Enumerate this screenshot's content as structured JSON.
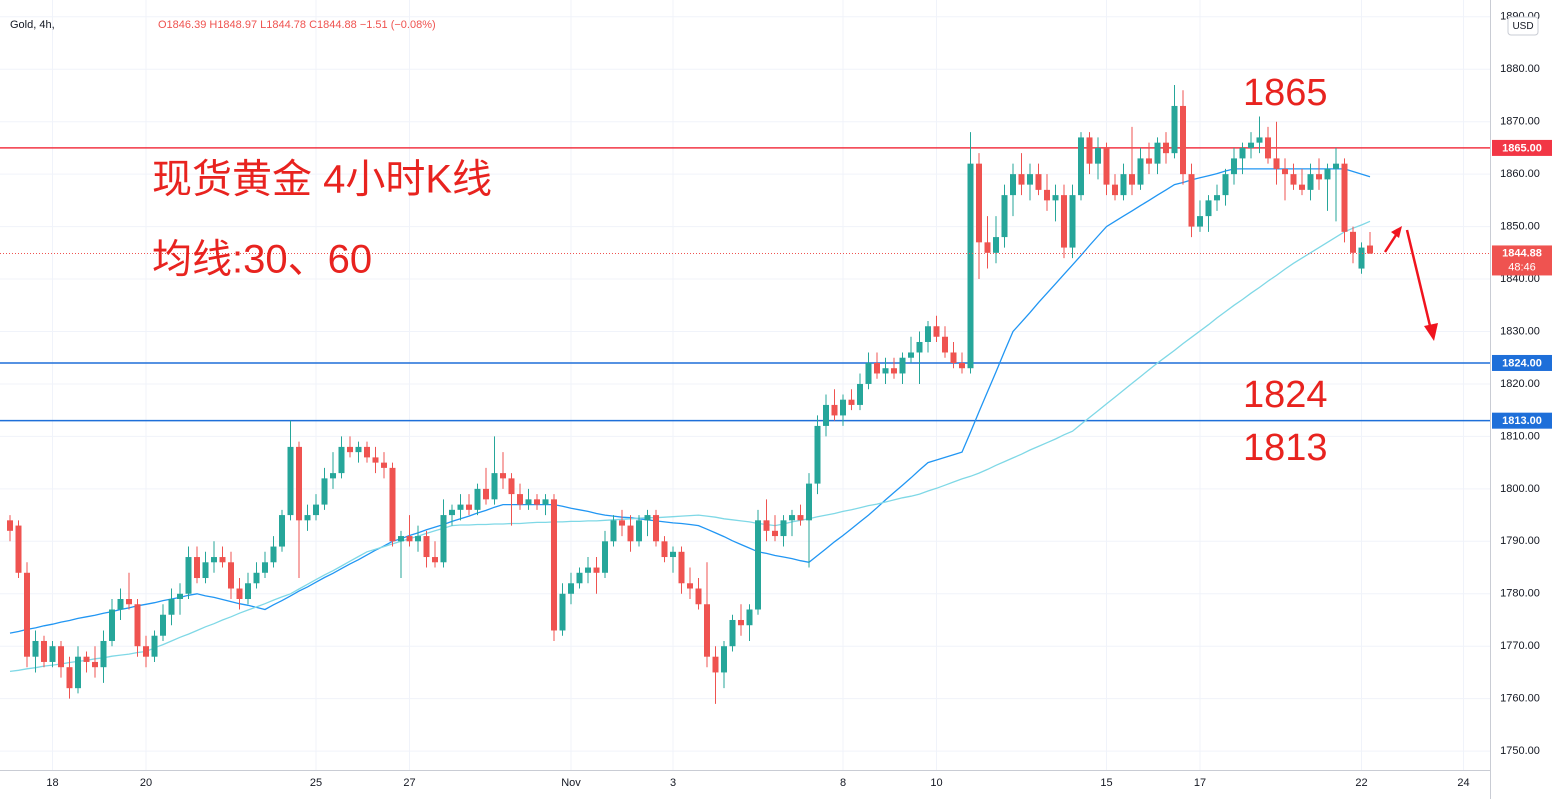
{
  "chart_data": {
    "type": "candlestick",
    "symbol": "Gold, 4h,",
    "ohlc_text": "O1846.39 H1848.97 L1844.78 C1844.88 −1.51 (−0.08%)",
    "currency": "USD",
    "annotations": [
      "现货黄金 4小时K线",
      "均线:30、60",
      "1865",
      "1824",
      "1813"
    ],
    "up_color": "#26a69a",
    "down_color": "#ef5350",
    "categories": [
      null,
      null,
      null,
      null,
      null,
      "18",
      null,
      null,
      null,
      null,
      null,
      null,
      null,
      null,
      null,
      null,
      "20",
      null,
      null,
      null,
      null,
      null,
      null,
      null,
      null,
      null,
      null,
      null,
      null,
      null,
      null,
      null,
      null,
      null,
      null,
      null,
      "25",
      null,
      null,
      null,
      null,
      null,
      null,
      null,
      null,
      null,
      null,
      "27",
      null,
      null,
      null,
      null,
      null,
      null,
      null,
      null,
      null,
      null,
      null,
      null,
      null,
      null,
      null,
      null,
      null,
      null,
      "Nov",
      null,
      null,
      null,
      null,
      null,
      null,
      null,
      null,
      null,
      null,
      null,
      "3",
      null,
      null,
      null,
      null,
      null,
      null,
      null,
      null,
      null,
      null,
      null,
      null,
      null,
      null,
      null,
      null,
      null,
      null,
      null,
      "8",
      null,
      null,
      null,
      null,
      null,
      null,
      null,
      null,
      null,
      null,
      "10",
      null,
      null,
      null,
      null,
      null,
      null,
      null,
      null,
      null,
      null,
      null,
      null,
      null,
      null,
      null,
      null,
      null,
      null,
      null,
      "15",
      null,
      null,
      null,
      null,
      null,
      null,
      null,
      null,
      null,
      null,
      "17",
      null,
      null,
      null,
      null,
      null,
      null,
      null,
      null,
      null,
      null,
      null,
      null,
      null,
      null,
      null,
      null,
      null,
      null,
      "22",
      null,
      null,
      null,
      null,
      null,
      null,
      null,
      null,
      null,
      null,
      null,
      "24",
      null,
      null,
      null
    ],
    "open": [
      1794,
      1793,
      1784,
      1768,
      1771,
      1767,
      1770,
      1766,
      1762,
      1768,
      1767,
      1766,
      1771,
      1777,
      1779,
      1778,
      1770,
      1768,
      1772,
      1776,
      1779,
      1780,
      1787,
      1783,
      1786,
      1787,
      1786,
      1781,
      1779,
      1782,
      1784,
      1786,
      1789,
      1795,
      1808,
      1794,
      1795,
      1797,
      1802,
      1803,
      1808,
      1807,
      1808,
      1806,
      1805,
      1804,
      1790,
      1791,
      1790,
      1791,
      1787,
      1786,
      1795,
      1796,
      1797,
      1796,
      1800,
      1798,
      1803,
      1802,
      1799,
      1797,
      1798,
      1797,
      1798,
      1773,
      1780,
      1782,
      1784,
      1785,
      1784,
      1790,
      1794,
      1793,
      1790,
      1794,
      1795,
      1790,
      1787,
      1788,
      1782,
      1781,
      1778,
      1768,
      1765,
      1770,
      1775,
      1774,
      1777,
      1794,
      1792,
      1791,
      1794,
      1795,
      1794,
      1801,
      1812,
      1816,
      1814,
      1817,
      1816,
      1820,
      1824,
      1822,
      1823,
      1822,
      1825,
      1826,
      1828,
      1831,
      1829,
      1826,
      1824,
      1823,
      1862,
      1847,
      1845,
      1848,
      1856,
      1860,
      1858,
      1860,
      1857,
      1855,
      1856,
      1846,
      1856,
      1867,
      1862,
      1865,
      1858,
      1856,
      1860,
      1858,
      1863,
      1862,
      1866,
      1864,
      1873,
      1860,
      1850,
      1852,
      1855,
      1856,
      1860,
      1863,
      1865,
      1866,
      1867,
      1863,
      1861,
      1860,
      1858,
      1857,
      1860,
      1859,
      1861,
      1862,
      1849,
      1842,
      1846.39,
      null,
      null,
      null,
      null,
      null,
      null,
      null,
      null,
      null,
      null,
      null,
      null,
      null,
      null
    ],
    "high": [
      1795,
      1794,
      1786,
      1773,
      1772,
      1771,
      1771,
      1768,
      1770,
      1769,
      1770,
      1773,
      1779,
      1781,
      1784,
      1779,
      1772,
      1773,
      1778,
      1781,
      1782,
      1789,
      1789,
      1788,
      1790,
      1789,
      1788,
      1783,
      1784,
      1786,
      1788,
      1791,
      1796,
      1813,
      1809,
      1797,
      1799,
      1804,
      1807,
      1810,
      1810,
      1809,
      1809,
      1808,
      1807,
      1805,
      1792,
      1795,
      1793,
      1792,
      1790,
      1798,
      1797,
      1799,
      1799,
      1801,
      1804,
      1810,
      1807,
      1803,
      1801,
      1800,
      1799,
      1799,
      1799,
      1782,
      1784,
      1785,
      1787,
      1787,
      1792,
      1795,
      1796,
      1795,
      1795,
      1796,
      1796,
      1791,
      1789,
      1789,
      1785,
      1783,
      1786,
      1770,
      1771,
      1776,
      1778,
      1778,
      1796,
      1798,
      1795,
      1795,
      1796,
      1797,
      1803,
      1814,
      1818,
      1819,
      1818,
      1819,
      1822,
      1826,
      1826,
      1825,
      1825,
      1826,
      1829,
      1830,
      1832,
      1833,
      1831,
      1828,
      1826,
      1868,
      1864,
      1852,
      1852,
      1858,
      1862,
      1864,
      1862,
      1862,
      1860,
      1858,
      1858,
      1858,
      1868,
      1868,
      1867,
      1866,
      1860,
      1862,
      1869,
      1865,
      1866,
      1867,
      1868,
      1877,
      1876,
      1862,
      1855,
      1856,
      1858,
      1861,
      1865,
      1866,
      1868,
      1871,
      1869,
      1870,
      1863,
      1862,
      1861,
      1862,
      1863,
      1862,
      1865,
      1863,
      1850,
      1847,
      1848.97,
      null,
      null,
      null,
      null,
      null,
      null,
      null,
      null,
      null,
      null,
      null,
      null,
      null,
      null
    ],
    "low": [
      1790,
      1783,
      1766,
      1765,
      1766,
      1766,
      1764,
      1760,
      1761,
      1765,
      1764,
      1763,
      1770,
      1775,
      1777,
      1768,
      1766,
      1767,
      1771,
      1774,
      1776,
      1779,
      1782,
      1782,
      1784,
      1785,
      1779,
      1777,
      1778,
      1781,
      1783,
      1785,
      1788,
      1794,
      1783,
      1792,
      1794,
      1796,
      1800,
      1802,
      1806,
      1805,
      1805,
      1803,
      1802,
      1789,
      1783,
      1789,
      1788,
      1785,
      1785,
      1785,
      1793,
      1794,
      1795,
      1795,
      1797,
      1797,
      1800,
      1793,
      1796,
      1796,
      1796,
      1795,
      1771,
      1772,
      1778,
      1781,
      1782,
      1780,
      1783,
      1789,
      1791,
      1788,
      1789,
      1791,
      1789,
      1786,
      1784,
      1780,
      1779,
      1777,
      1766,
      1759,
      1762,
      1769,
      1772,
      1771,
      1776,
      1790,
      1790,
      1789,
      1791,
      1793,
      1785,
      1799,
      1810,
      1813,
      1812,
      1815,
      1815,
      1819,
      1821,
      1820,
      1821,
      1820,
      1824,
      1820,
      1826,
      1828,
      1825,
      1823,
      1822,
      1822,
      1840,
      1842,
      1843,
      1846,
      1852,
      1856,
      1855,
      1856,
      1853,
      1851,
      1844,
      1844,
      1855,
      1860,
      1859,
      1856,
      1855,
      1855,
      1856,
      1857,
      1860,
      1860,
      1862,
      1863,
      1858,
      1848,
      1849,
      1849,
      1853,
      1854,
      1858,
      1860,
      1863,
      1864,
      1862,
      1858,
      1855,
      1857,
      1856,
      1855,
      1857,
      1853,
      1851,
      1847,
      1843,
      1841,
      1844.78,
      null,
      null,
      null,
      null,
      null,
      null,
      null,
      null,
      null,
      null,
      null,
      null,
      null,
      null
    ],
    "close": [
      1792,
      1784,
      1768,
      1771,
      1767,
      1770,
      1766,
      1762,
      1768,
      1767,
      1766,
      1771,
      1777,
      1779,
      1778,
      1770,
      1768,
      1772,
      1776,
      1779,
      1780,
      1787,
      1783,
      1786,
      1787,
      1786,
      1781,
      1779,
      1782,
      1784,
      1786,
      1789,
      1795,
      1808,
      1794,
      1795,
      1797,
      1802,
      1803,
      1808,
      1807,
      1808,
      1806,
      1805,
      1804,
      1790,
      1791,
      1790,
      1791,
      1787,
      1786,
      1795,
      1796,
      1797,
      1796,
      1800,
      1798,
      1803,
      1802,
      1799,
      1797,
      1798,
      1797,
      1798,
      1773,
      1780,
      1782,
      1784,
      1785,
      1784,
      1790,
      1794,
      1793,
      1790,
      1794,
      1795,
      1790,
      1787,
      1788,
      1782,
      1781,
      1778,
      1768,
      1765,
      1770,
      1775,
      1774,
      1777,
      1794,
      1792,
      1791,
      1794,
      1795,
      1794,
      1801,
      1812,
      1816,
      1814,
      1817,
      1816,
      1820,
      1824,
      1822,
      1823,
      1822,
      1825,
      1826,
      1828,
      1831,
      1829,
      1826,
      1824,
      1823,
      1862,
      1847,
      1845,
      1848,
      1856,
      1860,
      1858,
      1860,
      1857,
      1855,
      1856,
      1846,
      1856,
      1867,
      1862,
      1865,
      1858,
      1856,
      1860,
      1858,
      1863,
      1862,
      1866,
      1864,
      1873,
      1860,
      1850,
      1852,
      1855,
      1856,
      1860,
      1863,
      1865,
      1866,
      1867,
      1863,
      1861,
      1860,
      1858,
      1857,
      1860,
      1859,
      1861,
      1862,
      1849,
      1845,
      1846,
      1844.88,
      null,
      null,
      null,
      null,
      null,
      null,
      null,
      null,
      null,
      null,
      null,
      null,
      null,
      null
    ],
    "ma": [
      {
        "color": "#2196f3",
        "values": [
          1772.5,
          1772.8,
          1773.2,
          1773.5,
          1773.9,
          1774.2,
          1774.6,
          1774.9,
          1775.3,
          1775.6,
          1775.9,
          1776.3,
          1776.6,
          1777.0,
          1777.3,
          1777.7,
          1778.0,
          1778.3,
          1778.7,
          1779.0,
          1779.3,
          1779.7,
          1780.0,
          1779.6,
          1779.3,
          1778.9,
          1778.5,
          1778.1,
          1777.8,
          1777.4,
          1777.0,
          1777.9,
          1778.7,
          1779.6,
          1780.5,
          1781.3,
          1782.2,
          1783.1,
          1783.9,
          1784.8,
          1785.7,
          1786.5,
          1787.4,
          1788.3,
          1789.1,
          1790.0,
          1790.5,
          1791.1,
          1791.6,
          1792.2,
          1792.7,
          1793.2,
          1793.8,
          1794.3,
          1794.8,
          1795.4,
          1795.9,
          1796.5,
          1797.0,
          1797.0,
          1797.0,
          1797.0,
          1797.0,
          1797.0,
          1797.0,
          1796.7,
          1796.3,
          1796.0,
          1795.7,
          1795.3,
          1795.0,
          1794.8,
          1794.6,
          1794.5,
          1794.3,
          1794.1,
          1793.9,
          1793.7,
          1793.5,
          1793.4,
          1793.2,
          1793.0,
          1792.3,
          1791.6,
          1790.9,
          1790.1,
          1789.4,
          1788.7,
          1788.0,
          1787.7,
          1787.3,
          1787.0,
          1786.7,
          1786.3,
          1786.0,
          1787.3,
          1788.6,
          1789.9,
          1791.1,
          1792.4,
          1793.7,
          1795.0,
          1796.4,
          1797.9,
          1799.3,
          1800.7,
          1802.1,
          1803.6,
          1805.0,
          1805.5,
          1806.0,
          1806.5,
          1807.0,
          1810.8,
          1814.7,
          1818.5,
          1822.3,
          1826.2,
          1830.0,
          1831.8,
          1833.6,
          1835.5,
          1837.3,
          1839.1,
          1840.9,
          1842.7,
          1844.5,
          1846.4,
          1848.2,
          1850.0,
          1851.0,
          1852.0,
          1853.0,
          1854.0,
          1855.0,
          1856.0,
          1857.0,
          1858.0,
          1858.4,
          1858.9,
          1859.3,
          1859.7,
          1860.1,
          1860.6,
          1861.0,
          1861.0,
          1861.0,
          1861.0,
          1861.0,
          1861.0,
          1861.0,
          1861.0,
          1861.0,
          1861.0,
          1861.0,
          1861.0,
          1861.0,
          1861.0,
          1860.5,
          1860.0,
          1859.5,
          null,
          null,
          null,
          null,
          null,
          null,
          null,
          null,
          null,
          null,
          null,
          null,
          null,
          null
        ]
      },
      {
        "color": "#7fd8e6",
        "values": [
          1765.2,
          1765.4,
          1765.7,
          1765.9,
          1766.2,
          1766.4,
          1766.6,
          1766.9,
          1767.1,
          1767.3,
          1767.6,
          1767.8,
          1768.1,
          1768.3,
          1768.5,
          1768.8,
          1769.0,
          1769.7,
          1770.3,
          1771.0,
          1771.7,
          1772.3,
          1773.0,
          1773.7,
          1774.3,
          1775.0,
          1775.6,
          1776.3,
          1776.9,
          1777.5,
          1778.1,
          1778.8,
          1779.4,
          1780.0,
          1780.9,
          1781.8,
          1782.7,
          1783.6,
          1784.4,
          1785.3,
          1786.2,
          1787.1,
          1788.0,
          1788.5,
          1789.0,
          1789.5,
          1790.0,
          1790.5,
          1791.0,
          1791.5,
          1792.0,
          1792.5,
          1793.0,
          1793.1,
          1793.1,
          1793.2,
          1793.2,
          1793.3,
          1793.3,
          1793.4,
          1793.4,
          1793.5,
          1793.6,
          1793.6,
          1793.7,
          1793.7,
          1793.8,
          1793.8,
          1793.9,
          1793.9,
          1794.0,
          1794.1,
          1794.2,
          1794.3,
          1794.4,
          1794.5,
          1794.5,
          1794.6,
          1794.7,
          1794.8,
          1794.9,
          1795.0,
          1794.8,
          1794.6,
          1794.3,
          1794.1,
          1793.9,
          1793.7,
          1793.4,
          1793.2,
          1793.0,
          1793.3,
          1793.7,
          1794.0,
          1794.3,
          1794.7,
          1795.0,
          1795.3,
          1795.7,
          1796.0,
          1796.4,
          1796.8,
          1797.1,
          1797.5,
          1797.9,
          1798.3,
          1798.6,
          1799.0,
          1799.6,
          1800.1,
          1800.7,
          1801.3,
          1801.9,
          1802.4,
          1803.0,
          1803.7,
          1804.5,
          1805.2,
          1805.9,
          1806.6,
          1807.4,
          1808.1,
          1808.8,
          1809.5,
          1810.3,
          1811.0,
          1812.3,
          1813.6,
          1814.9,
          1816.2,
          1817.5,
          1818.8,
          1820.1,
          1821.4,
          1822.7,
          1824.0,
          1825.2,
          1826.4,
          1827.7,
          1828.9,
          1830.1,
          1831.3,
          1832.6,
          1833.8,
          1835.0,
          1836.1,
          1837.3,
          1838.4,
          1839.6,
          1840.7,
          1841.9,
          1843.0,
          1844.0,
          1845.0,
          1846.0,
          1847.0,
          1848.0,
          1849.0,
          1849.7,
          1850.3,
          1851.0,
          null,
          null,
          null,
          null,
          null,
          null,
          null,
          null,
          null,
          null,
          null,
          null,
          null,
          null
        ]
      }
    ],
    "levels": [
      {
        "value": 1865,
        "label": "1865.00",
        "color": "#f23645"
      },
      {
        "value": 1824,
        "label": "1824.00",
        "color": "#1e6fd9"
      },
      {
        "value": 1813,
        "label": "1813.00",
        "color": "#1e6fd9"
      }
    ],
    "last_price": {
      "value": 1844.88,
      "label": "1844.88",
      "countdown": "48:46",
      "color": "#ef5350"
    },
    "ylim": [
      1746.4,
      1893.2
    ],
    "yticks": [
      {
        "value": 1750,
        "label": "1750.00"
      },
      {
        "value": 1760,
        "label": "1760.00"
      },
      {
        "value": 1770,
        "label": "1770.00"
      },
      {
        "value": 1780,
        "label": "1780.00"
      },
      {
        "value": 1790,
        "label": "1790.00"
      },
      {
        "value": 1800,
        "label": "1800.00"
      },
      {
        "value": 1810,
        "label": "1810.00"
      },
      {
        "value": 1820,
        "label": "1820.00"
      },
      {
        "value": 1830,
        "label": "1830.00"
      },
      {
        "value": 1840,
        "label": "1840.00"
      },
      {
        "value": 1850,
        "label": "1850.00"
      },
      {
        "value": 1860,
        "label": "1860.00"
      },
      {
        "value": 1870,
        "label": "1870.00"
      },
      {
        "value": 1880,
        "label": "1880.00"
      },
      {
        "value": 1890,
        "label": "1890.00"
      }
    ],
    "grid": true
  }
}
